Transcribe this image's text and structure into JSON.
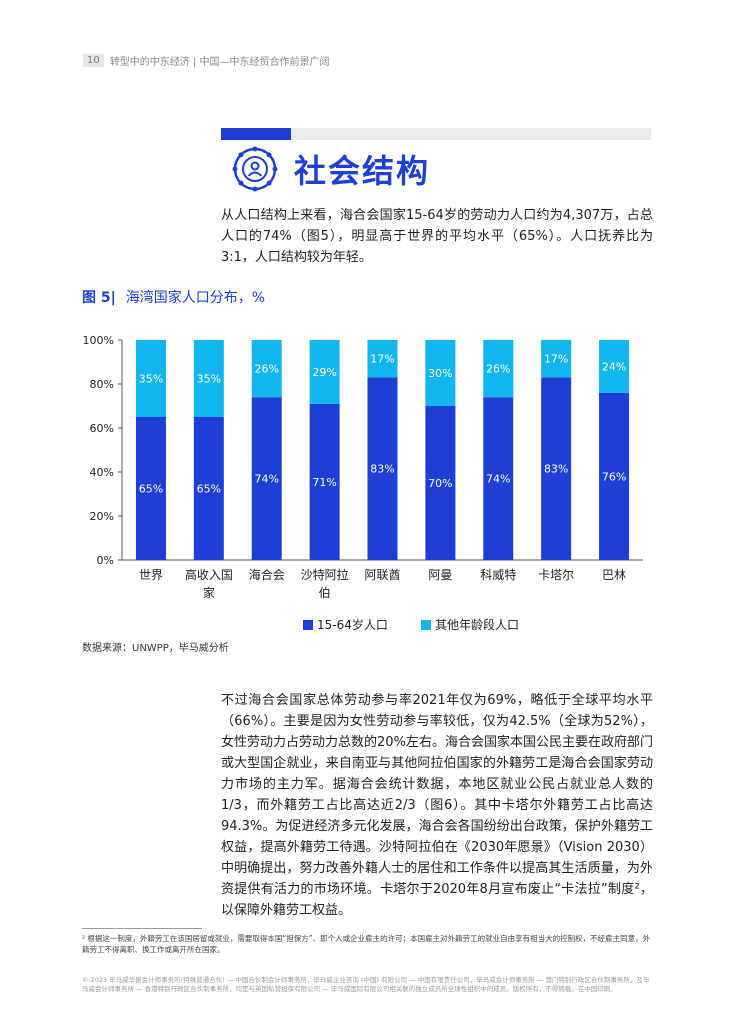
{
  "header": {
    "page_number": "10",
    "running_title": "转型中的中东经济 | 中国—中东经贸合作前景广阔"
  },
  "section": {
    "icon": "person-network-icon",
    "title": "社会结构"
  },
  "intro_paragraph": "从人口结构上来看，海合会国家15-64岁的劳动力人口约为4,307万，占总人口的74%（图5），明显高于世界的平均水平（65%）。人口抚养比为3:1，人口结构较为年轻。",
  "figure": {
    "label": "图 5|",
    "title": "海湾国家人口分布，%",
    "source": "数据来源：UNWPP，毕马威分析"
  },
  "chart_data": {
    "type": "bar",
    "stacked": true,
    "categories": [
      "世界",
      "高收入国家",
      "海合会",
      "沙特阿拉伯",
      "阿联酋",
      "阿曼",
      "科威特",
      "卡塔尔",
      "巴林"
    ],
    "series": [
      {
        "name": "15-64岁人口",
        "values": [
          65,
          65,
          74,
          71,
          83,
          70,
          74,
          83,
          76
        ],
        "labels": [
          "65%",
          "65%",
          "74%",
          "71%",
          "83%",
          "70%",
          "74%",
          "83%",
          "76%"
        ],
        "color": "#1e3fd6"
      },
      {
        "name": "其他年龄段人口",
        "values": [
          35,
          35,
          26,
          29,
          17,
          30,
          26,
          17,
          24
        ],
        "labels": [
          "35%",
          "35%",
          "26%",
          "29%",
          "17%",
          "30%",
          "26%",
          "17%",
          "24%"
        ],
        "color": "#12b6ef"
      }
    ],
    "yticks": [
      "0%",
      "20%",
      "40%",
      "60%",
      "80%",
      "100%"
    ],
    "ylim": [
      0,
      100
    ],
    "legend": "bottom",
    "grid": false
  },
  "body_paragraph": "不过海合会国家总体劳动参与率2021年仅为69%，略低于全球平均水平（66%）。主要是因为女性劳动参与率较低，仅为42.5%（全球为52%），女性劳动力占劳动力总数的20%左右。海合会国家本国公民主要在政府部门或大型国企就业，来自南亚与其他阿拉伯国家的外籍劳工是海合会国家劳动力市场的主力军。据海合会统计数据，本地区就业公民占就业总人数的1/3，而外籍劳工占比高达近2/3（图6）。其中卡塔尔外籍劳工占比高达94.3%。为促进经济多元化发展，海合会各国纷纷出台政策，保护外籍劳工权益，提高外籍劳工待遇。沙特阿拉伯在《2030年愿景》（Vision 2030）中明确提出，努力改善外籍人士的居住和工作条件以提高其生活质量，为外资提供有活力的市场环境。卡塔尔于2020年8月宣布废止“卡法拉”制度²，以保障外籍劳工权益。",
  "footnote": "² 根据这一制度，外籍劳工在该国居留或就业，需要取得本国“担保方”、即个人或企业雇主的许可；本国雇主对外籍劳工的就业自由享有相当大的控制权，不经雇主同意，外籍劳工不得离职、换工作或离开所在国家。",
  "legal": "© 2023 毕马威华振会计师事务所(特殊普通合伙) — 中国合伙制会计师事务所，毕马威企业咨询 (中国) 有限公司 — 中国有限责任公司，毕马威会计师事务所 — 澳门特别行政区合伙制事务所，及毕马威会计师事务所 — 香港特别行政区合伙制事务所，均是与英国私营担保有限公司 — 毕马威国际有限公司相关联的独立成员所全球性组织中的成员。版权所有，不得转载。在中国印刷。"
}
